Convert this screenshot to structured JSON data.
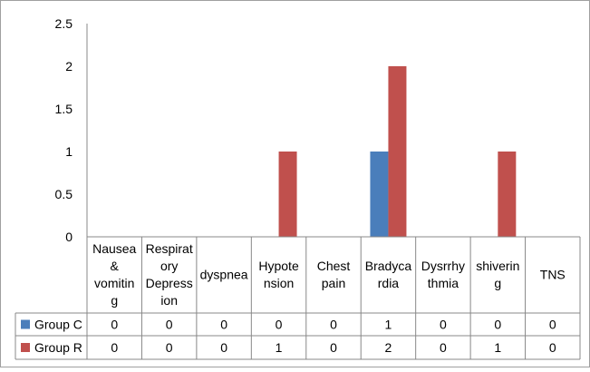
{
  "chart_data": {
    "type": "bar",
    "categories": [
      [
        "Nausea",
        "&",
        "vomitin",
        "g"
      ],
      [
        "Respirat",
        "ory",
        "Depress",
        "ion"
      ],
      [
        "dyspnea"
      ],
      [
        "Hypote",
        "nsion"
      ],
      [
        "Chest",
        "pain"
      ],
      [
        "Bradyca",
        "rdia"
      ],
      [
        "Dysrrhy",
        "thmia"
      ],
      [
        "shiverin",
        "g"
      ],
      [
        "TNS"
      ]
    ],
    "series": [
      {
        "name": "Group C",
        "color": "#4a7ebb",
        "values": [
          0,
          0,
          0,
          0,
          0,
          1,
          0,
          0,
          0
        ]
      },
      {
        "name": "Group R",
        "color": "#c0504d",
        "values": [
          0,
          0,
          0,
          1,
          0,
          2,
          0,
          1,
          0
        ]
      }
    ],
    "ylim": [
      0,
      2.5
    ],
    "yticks": [
      "0",
      "0.5",
      "1",
      "1.5",
      "2",
      "2.5"
    ],
    "grid": false,
    "legend": "data-table-rows",
    "title": "",
    "xlabel": "",
    "ylabel": ""
  }
}
